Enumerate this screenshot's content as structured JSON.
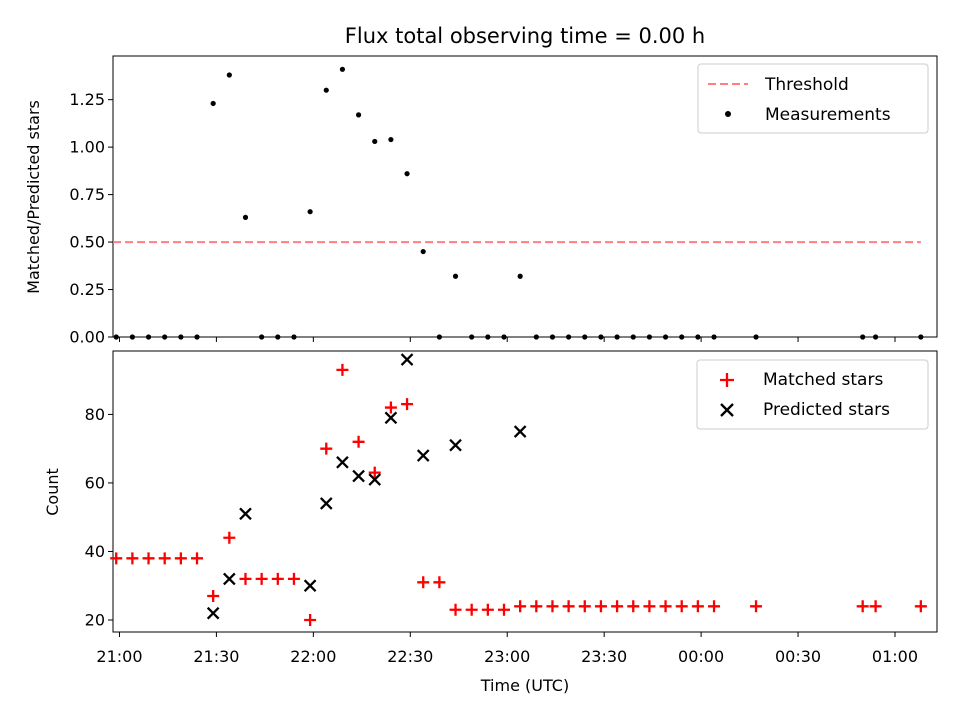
{
  "chart_data": {
    "type": "scatter",
    "title": "Flux total observing time = 0.00 h",
    "xlabel": "Time (UTC)",
    "x_unit": "UTC time (HH:MM), axis spans two dates",
    "x_ticks": [
      "21:00",
      "21:30",
      "22:00",
      "22:30",
      "23:00",
      "23:30",
      "00:00",
      "00:30",
      "01:00"
    ],
    "xlim": [
      "20:58",
      "01:13"
    ],
    "panels": [
      {
        "id": "ratio",
        "ylabel": "Matched/Predicted stars",
        "ylim": [
          0,
          1.48
        ],
        "y_ticks": [
          "0.00",
          "0.25",
          "0.50",
          "0.75",
          "1.00",
          "1.25"
        ],
        "y_tick_values": [
          0,
          0.25,
          0.5,
          0.75,
          1.0,
          1.25
        ],
        "legend_position": "upper right",
        "series": [
          {
            "name": "Threshold",
            "style": "dashed-line",
            "color": "#ff7f7f",
            "x": [
              "20:58",
              "23:45",
              "01:08"
            ],
            "y": [
              0.5,
              0.5,
              0.5
            ]
          },
          {
            "name": "Measurements",
            "style": "dot",
            "color": "#000000",
            "x": [
              "20:59",
              "21:04",
              "21:09",
              "21:14",
              "21:19",
              "21:24",
              "21:29",
              "21:34",
              "21:39",
              "21:44",
              "21:49",
              "21:54",
              "21:59",
              "22:04",
              "22:09",
              "22:14",
              "22:19",
              "22:24",
              "22:29",
              "22:34",
              "22:39",
              "22:44",
              "22:49",
              "22:54",
              "22:59",
              "23:04",
              "23:09",
              "23:14",
              "23:19",
              "23:24",
              "23:29",
              "23:34",
              "23:39",
              "23:44",
              "23:49",
              "23:54",
              "23:59",
              "00:04",
              "00:17",
              "00:50",
              "00:54",
              "01:08"
            ],
            "y": [
              0,
              0,
              0,
              0,
              0,
              0,
              1.23,
              1.38,
              0.63,
              0,
              0,
              0,
              0.66,
              1.3,
              1.41,
              1.17,
              1.03,
              1.04,
              0.86,
              0.45,
              0,
              0.32,
              0,
              0,
              0,
              0.32,
              0,
              0,
              0,
              0,
              0,
              0,
              0,
              0,
              0,
              0,
              0,
              0,
              0,
              0,
              0,
              0
            ]
          }
        ]
      },
      {
        "id": "count",
        "ylabel": "Count",
        "ylim": [
          16.5,
          98.5
        ],
        "y_ticks": [
          "20",
          "40",
          "60",
          "80"
        ],
        "y_tick_values": [
          20,
          40,
          60,
          80
        ],
        "legend_position": "upper right",
        "series": [
          {
            "name": "Matched stars",
            "style": "plus",
            "color": "#ff0000",
            "x": [
              "20:59",
              "21:04",
              "21:09",
              "21:14",
              "21:19",
              "21:24",
              "21:29",
              "21:34",
              "21:39",
              "21:44",
              "21:49",
              "21:54",
              "21:59",
              "22:04",
              "22:09",
              "22:14",
              "22:19",
              "22:24",
              "22:29",
              "22:34",
              "22:39",
              "22:44",
              "22:49",
              "22:54",
              "22:59",
              "23:04",
              "23:09",
              "23:14",
              "23:19",
              "23:24",
              "23:29",
              "23:34",
              "23:39",
              "23:44",
              "23:49",
              "23:54",
              "23:59",
              "00:04",
              "00:17",
              "00:50",
              "00:54",
              "01:08"
            ],
            "y": [
              38,
              38,
              38,
              38,
              38,
              38,
              27,
              44,
              32,
              32,
              32,
              32,
              20,
              70,
              93,
              72,
              63,
              82,
              83,
              31,
              31,
              23,
              23,
              23,
              23,
              24,
              24,
              24,
              24,
              24,
              24,
              24,
              24,
              24,
              24,
              24,
              24,
              24,
              24,
              24,
              24,
              24
            ]
          },
          {
            "name": "Predicted stars",
            "style": "x",
            "color": "#000000",
            "x": [
              "21:29",
              "21:34",
              "21:39",
              "21:59",
              "22:04",
              "22:09",
              "22:14",
              "22:19",
              "22:24",
              "22:29",
              "22:34",
              "22:44",
              "23:04"
            ],
            "y": [
              22,
              32,
              51,
              30,
              54,
              66,
              62,
              61,
              79,
              96,
              68,
              71,
              75
            ]
          }
        ]
      }
    ]
  }
}
